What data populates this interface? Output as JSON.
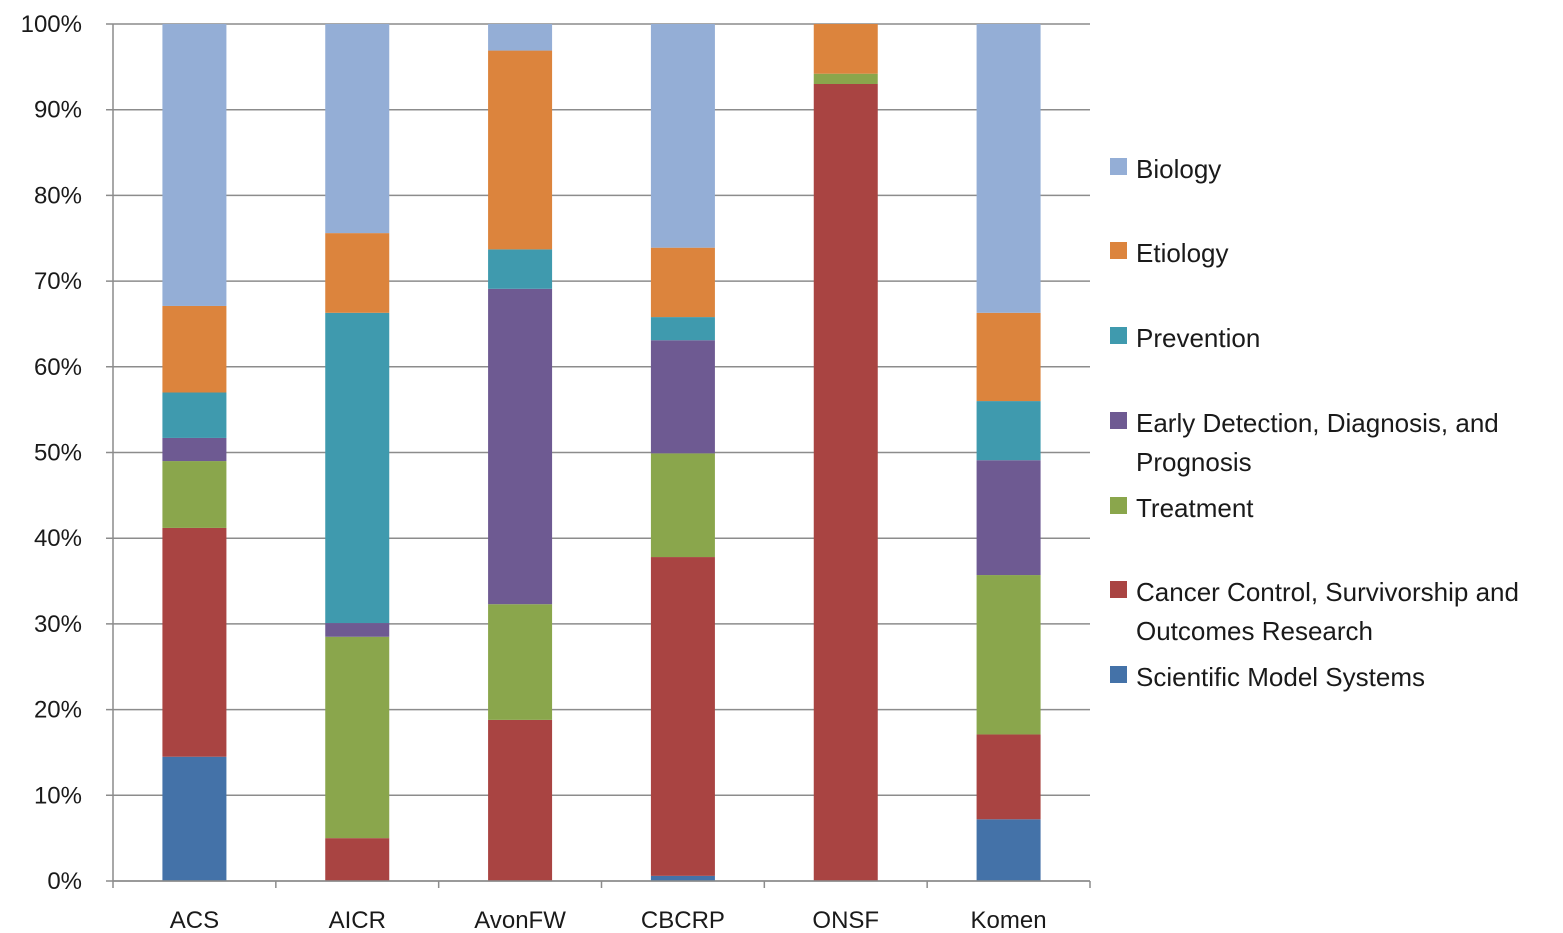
{
  "chart_data": {
    "type": "bar",
    "stacked": "percent",
    "categories": [
      "ACS",
      "AICR",
      "AvonFW",
      "CBCRP",
      "ONSF",
      "Komen"
    ],
    "y_ticks": [
      "0%",
      "10%",
      "20%",
      "30%",
      "40%",
      "50%",
      "60%",
      "70%",
      "80%",
      "90%",
      "100%"
    ],
    "ylim": [
      0,
      100
    ],
    "grid": true,
    "legend_position": "right",
    "series": [
      {
        "name": "Scientific Model Systems",
        "color": "#4472a8",
        "values": [
          14.5,
          0,
          0,
          0.6,
          0,
          7.2
        ]
      },
      {
        "name": "Cancer Control, Survivorship and Outcomes Research",
        "color": "#a94442",
        "values": [
          26.7,
          5,
          18.8,
          37.2,
          93,
          9.9
        ]
      },
      {
        "name": "Treatment",
        "color": "#8aa64c",
        "values": [
          7.8,
          23.5,
          13.5,
          12.1,
          1.2,
          18.6
        ]
      },
      {
        "name": "Early Detection, Diagnosis, and Prognosis",
        "color": "#6e5a92",
        "values": [
          2.7,
          1.6,
          36.8,
          13.2,
          0,
          13.4
        ]
      },
      {
        "name": "Prevention",
        "color": "#3f9aae",
        "values": [
          5.3,
          36.2,
          4.6,
          2.7,
          0,
          6.9
        ]
      },
      {
        "name": "Etiology",
        "color": "#dc843d",
        "values": [
          10.1,
          9.3,
          23.2,
          8.1,
          5.8,
          10.3
        ]
      },
      {
        "name": "Biology",
        "color": "#94aed6",
        "values": [
          32.9,
          24.4,
          3.1,
          26.1,
          0,
          33.7
        ]
      }
    ],
    "legend_order": [
      "Biology",
      "Etiology",
      "Prevention",
      "Early Detection, Diagnosis, and Prognosis",
      "Treatment",
      "Cancer Control, Survivorship and Outcomes Research",
      "Scientific Model Systems"
    ]
  }
}
